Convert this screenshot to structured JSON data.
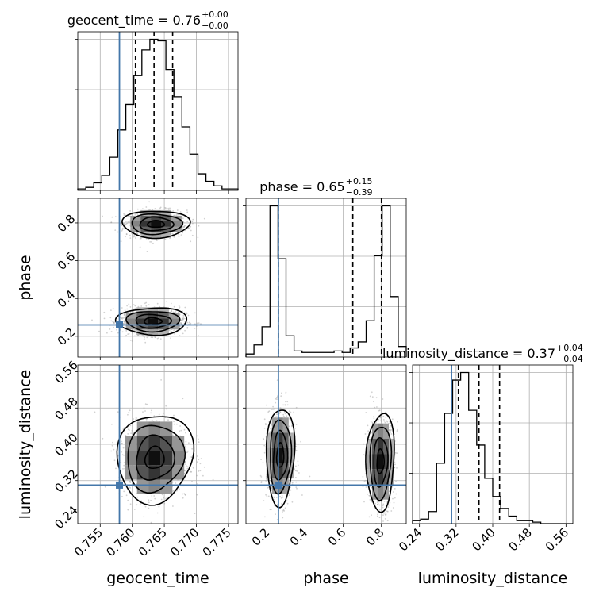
{
  "chart_data": {
    "type": "corner",
    "parameters": [
      {
        "name": "geocent_time",
        "label": "geocent_time",
        "range": [
          0.7515,
          0.7765
        ],
        "ticks": [
          0.755,
          0.76,
          0.765,
          0.77,
          0.775
        ],
        "tick_labels": [
          "0.755",
          "0.760",
          "0.765",
          "0.770",
          "0.775"
        ],
        "truth": 0.758,
        "quantiles": [
          0.7605,
          0.7634,
          0.7663
        ],
        "title_main": "geocent_time = 0.76",
        "title_plus": "+0.00",
        "title_minus": "−0.00",
        "hist": {
          "edges_start": 0.7515,
          "bin_width": 0.00125,
          "counts": [
            1,
            2,
            5,
            10,
            22,
            40,
            57,
            76,
            93,
            100,
            99,
            80,
            62,
            42,
            24,
            11,
            6,
            3,
            1,
            1
          ]
        }
      },
      {
        "name": "phase",
        "label": "phase",
        "range": [
          0.09,
          0.93
        ],
        "ticks": [
          0.2,
          0.4,
          0.6,
          0.8
        ],
        "tick_labels": [
          "0.2",
          "0.4",
          "0.6",
          "0.8"
        ],
        "truth": 0.26,
        "quantiles": [
          0.26,
          0.65,
          0.8
        ],
        "title_main": "phase = 0.65",
        "title_plus": "+0.15",
        "title_minus": "−0.39",
        "hist": {
          "edges_start": 0.09,
          "bin_width": 0.042,
          "counts": [
            2,
            8,
            20,
            100,
            65,
            14,
            4,
            3,
            3,
            3,
            3,
            4,
            3,
            6,
            10,
            24,
            67,
            100,
            40,
            7
          ]
        }
      },
      {
        "name": "luminosity_distance",
        "label": "luminosity_distance",
        "range": [
          0.225,
          0.575
        ],
        "ticks": [
          0.24,
          0.32,
          0.4,
          0.48,
          0.56
        ],
        "tick_labels": [
          "0.24",
          "0.32",
          "0.40",
          "0.48",
          "0.56"
        ],
        "truth": 0.31,
        "quantiles": [
          0.325,
          0.37,
          0.415
        ],
        "title_main": "luminosity_distance = 0.37",
        "title_plus": "+0.04",
        "title_minus": "−0.04",
        "hist": {
          "edges_start": 0.225,
          "bin_width": 0.0175,
          "counts": [
            2,
            3,
            8,
            40,
            73,
            95,
            100,
            75,
            52,
            30,
            18,
            10,
            5,
            2,
            2,
            1,
            0,
            0,
            0,
            0
          ]
        }
      }
    ],
    "pairs": [
      {
        "x": 0,
        "y": 1,
        "modes": [
          {
            "cx": 0.7637,
            "cy": 0.794,
            "sx": 0.002,
            "sy": 0.03,
            "weight": 1
          },
          {
            "cx": 0.7632,
            "cy": 0.28,
            "sx": 0.0021,
            "sy": 0.03,
            "weight": 1
          }
        ]
      },
      {
        "x": 0,
        "y": 2,
        "modes": [
          {
            "cx": 0.7635,
            "cy": 0.37,
            "sx": 0.0023,
            "sy": 0.04,
            "weight": 1
          }
        ]
      },
      {
        "x": 1,
        "y": 2,
        "modes": [
          {
            "cx": 0.27,
            "cy": 0.375,
            "sx": 0.03,
            "sy": 0.042,
            "weight": 1
          },
          {
            "cx": 0.795,
            "cy": 0.362,
            "sx": 0.03,
            "sy": 0.042,
            "weight": 1
          }
        ]
      }
    ],
    "truth_color": "#4477aa",
    "contour_levels": [
      0.5,
      1.0,
      1.5,
      2.0
    ],
    "grid": true
  }
}
